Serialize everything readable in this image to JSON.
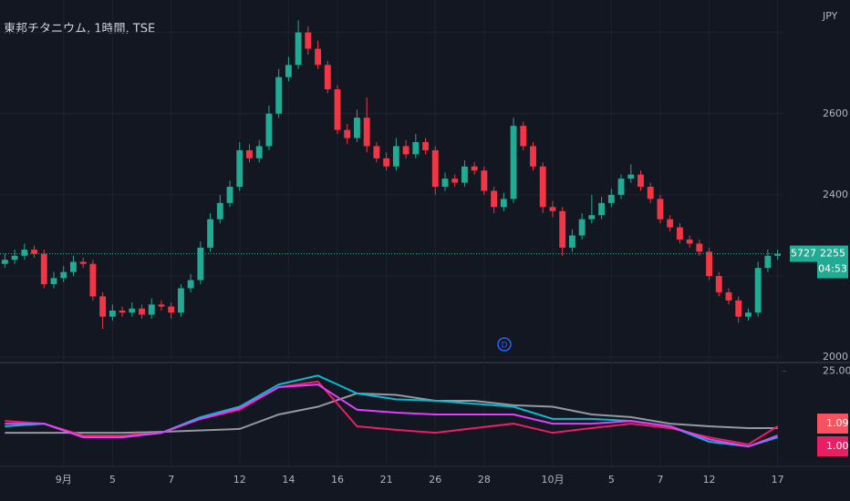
{
  "chart_data": [
    {
      "type": "candlestick",
      "title": "東邦チタニウム, 1時間, TSE",
      "currency": "JPY",
      "categories": [
        null,
        null,
        null,
        null,
        null,
        null,
        "9月",
        null,
        null,
        null,
        null,
        "5",
        null,
        null,
        null,
        null,
        null,
        "7",
        null,
        null,
        null,
        null,
        null,
        null,
        "12",
        null,
        null,
        null,
        null,
        "14",
        null,
        null,
        null,
        null,
        "16",
        null,
        null,
        null,
        null,
        "21",
        null,
        null,
        null,
        null,
        "26",
        null,
        null,
        null,
        null,
        "28",
        null,
        null,
        null,
        null,
        null,
        null,
        "10月",
        null,
        null,
        null,
        null,
        null,
        "5",
        null,
        null,
        null,
        null,
        "7",
        null,
        null,
        null,
        null,
        "12",
        null,
        null,
        null,
        null,
        null,
        null,
        "17"
      ],
      "open": [
        2230,
        2240,
        2250,
        2265,
        2255,
        2180,
        2195,
        2210,
        2235,
        2230,
        2150,
        2100,
        2115,
        2110,
        2120,
        2105,
        2130,
        2125,
        2110,
        2170,
        2190,
        2270,
        2340,
        2380,
        2420,
        2510,
        2490,
        2520,
        2600,
        2690,
        2720,
        2800,
        2760,
        2720,
        2660,
        2560,
        2540,
        2590,
        2520,
        2490,
        2470,
        2520,
        2500,
        2530,
        2510,
        2420,
        2440,
        2430,
        2470,
        2460,
        2410,
        2370,
        2390,
        2570,
        2520,
        2470,
        2370,
        2360,
        2270,
        2300,
        2340,
        2350,
        2380,
        2400,
        2440,
        2450,
        2420,
        2390,
        2340,
        2320,
        2290,
        2280,
        2260,
        2200,
        2160,
        2140,
        2100,
        2110,
        2220,
        2250
      ],
      "high": [
        2255,
        2265,
        2280,
        2275,
        2265,
        2210,
        2225,
        2250,
        2245,
        2240,
        2160,
        2130,
        2125,
        2135,
        2130,
        2145,
        2140,
        2135,
        2180,
        2205,
        2285,
        2355,
        2400,
        2435,
        2530,
        2525,
        2535,
        2620,
        2710,
        2740,
        2830,
        2815,
        2780,
        2730,
        2670,
        2575,
        2610,
        2640,
        2530,
        2505,
        2540,
        2535,
        2550,
        2540,
        2520,
        2455,
        2450,
        2485,
        2480,
        2470,
        2420,
        2405,
        2590,
        2580,
        2530,
        2480,
        2385,
        2370,
        2315,
        2355,
        2400,
        2395,
        2415,
        2450,
        2475,
        2460,
        2430,
        2400,
        2350,
        2330,
        2300,
        2290,
        2270,
        2210,
        2170,
        2150,
        2120,
        2235,
        2265,
        2265
      ],
      "low": [
        2220,
        2230,
        2240,
        2245,
        2170,
        2170,
        2185,
        2200,
        2220,
        2140,
        2070,
        2090,
        2100,
        2100,
        2095,
        2095,
        2115,
        2095,
        2100,
        2160,
        2180,
        2260,
        2330,
        2370,
        2410,
        2480,
        2480,
        2510,
        2590,
        2680,
        2710,
        2745,
        2710,
        2650,
        2550,
        2525,
        2530,
        2505,
        2480,
        2460,
        2460,
        2490,
        2490,
        2500,
        2400,
        2410,
        2420,
        2420,
        2450,
        2400,
        2355,
        2360,
        2380,
        2510,
        2460,
        2355,
        2345,
        2250,
        2260,
        2290,
        2330,
        2340,
        2370,
        2390,
        2430,
        2410,
        2380,
        2330,
        2310,
        2280,
        2270,
        2250,
        2190,
        2150,
        2130,
        2085,
        2090,
        2100,
        2210,
        2240
      ],
      "close": [
        2240,
        2250,
        2265,
        2255,
        2180,
        2195,
        2210,
        2235,
        2230,
        2150,
        2100,
        2115,
        2110,
        2120,
        2105,
        2130,
        2125,
        2110,
        2170,
        2190,
        2270,
        2340,
        2380,
        2420,
        2510,
        2490,
        2520,
        2600,
        2690,
        2720,
        2800,
        2760,
        2720,
        2660,
        2560,
        2540,
        2590,
        2520,
        2490,
        2470,
        2520,
        2500,
        2530,
        2510,
        2420,
        2440,
        2430,
        2470,
        2460,
        2410,
        2370,
        2390,
        2570,
        2520,
        2470,
        2370,
        2360,
        2270,
        2300,
        2340,
        2350,
        2380,
        2400,
        2440,
        2450,
        2420,
        2390,
        2340,
        2320,
        2290,
        2280,
        2260,
        2200,
        2160,
        2140,
        2100,
        2110,
        2220,
        2250,
        2255
      ],
      "up_color": "#22ab94",
      "down_color": "#f23645",
      "ylim": [
        1987,
        2880
      ],
      "yticks": [
        2000,
        2400,
        2600
      ],
      "ygrid": [
        2200,
        2800
      ],
      "grid": true,
      "last_price": 2255,
      "volume_label": "5727",
      "countdown": "04:53",
      "event_marker": "D"
    },
    {
      "type": "line",
      "x": [
        0,
        4,
        8,
        12,
        16,
        20,
        24,
        28,
        32,
        36,
        40,
        44,
        48,
        52,
        56,
        60,
        64,
        68,
        72,
        76,
        79
      ],
      "xlim": [
        -0.5,
        79.5
      ],
      "ylim": [
        -6.5,
        27.9
      ],
      "yticks": [
        {
          "value": 25,
          "label": "25.00"
        }
      ],
      "series": [
        {
          "color": "#9598a1",
          "values": [
            4.2,
            4.2,
            4.2,
            4.2,
            4.5,
            5.0,
            5.5,
            10.4,
            13.0,
            17.5,
            17.0,
            15.0,
            15.0,
            13.5,
            13.0,
            10.4,
            9.5,
            7.3,
            6.4,
            5.8,
            5.8
          ]
        },
        {
          "color": "#e91e63",
          "values": [
            8.2,
            7.3,
            3.3,
            3.3,
            4.2,
            8.9,
            12.0,
            19.6,
            21.5,
            6.4,
            5.2,
            4.2,
            5.8,
            7.3,
            4.2,
            5.8,
            7.3,
            5.8,
            2.7,
            0.3,
            6.4
          ]
        },
        {
          "color": "#00bcd4",
          "values": [
            6.4,
            7.3,
            2.7,
            2.7,
            4.2,
            9.5,
            13.0,
            20.5,
            23.5,
            17.5,
            15.5,
            15.0,
            14.0,
            13.0,
            8.9,
            8.9,
            8.2,
            6.4,
            1.2,
            -0.4,
            2.7
          ]
        },
        {
          "color": "#e040fb",
          "values": [
            7.3,
            7.3,
            2.7,
            2.7,
            4.2,
            8.9,
            12.5,
            19.6,
            20.5,
            12.0,
            11.0,
            10.4,
            10.4,
            10.4,
            7.3,
            7.3,
            8.2,
            6.4,
            2.0,
            -0.4,
            3.3
          ]
        }
      ],
      "price_labels": [
        "1.09",
        "1.00"
      ],
      "label_colors": [
        "#f7525f",
        "#e91e63"
      ]
    }
  ]
}
